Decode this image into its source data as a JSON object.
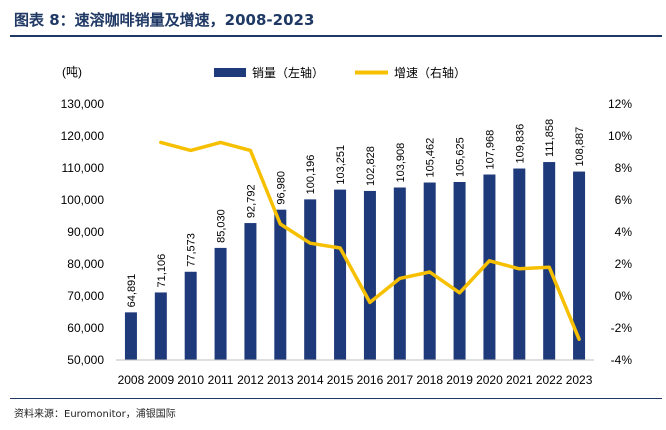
{
  "figure": {
    "title": "图表 8：速溶咖啡销量及增速，2008-2023",
    "source": "资料来源：Euromonitor，浦银国际"
  },
  "colors": {
    "bar": "#1f3a7a",
    "line": "#f6c000",
    "title": "#1f3864"
  },
  "chart_data": {
    "type": "bar+line",
    "unit_label": "(吨)",
    "categories": [
      "2008",
      "2009",
      "2010",
      "2011",
      "2012",
      "2013",
      "2014",
      "2015",
      "2016",
      "2017",
      "2018",
      "2019",
      "2020",
      "2021",
      "2022",
      "2023"
    ],
    "series": [
      {
        "name": "销量（左轴）",
        "type": "bar",
        "axis": "left",
        "values": [
          64891,
          71106,
          77573,
          85030,
          92792,
          96980,
          100196,
          103251,
          102828,
          103908,
          105462,
          105625,
          107968,
          109836,
          111858,
          108887
        ],
        "labels": [
          "64,891",
          "71,106",
          "77,573",
          "85,030",
          "92,792",
          "96,980",
          "100,196",
          "103,251",
          "102,828",
          "103,908",
          "105,462",
          "105,625",
          "107,968",
          "109,836",
          "111,858",
          "108,887"
        ]
      },
      {
        "name": "增速（右轴）",
        "type": "line",
        "axis": "right",
        "values": [
          null,
          9.6,
          9.1,
          9.6,
          9.1,
          4.5,
          3.3,
          3.0,
          -0.4,
          1.1,
          1.5,
          0.2,
          2.2,
          1.7,
          1.8,
          -2.7
        ]
      }
    ],
    "y_left": {
      "min": 50000,
      "max": 130000,
      "step": 10000,
      "ticks": [
        "50,000",
        "60,000",
        "70,000",
        "80,000",
        "90,000",
        "100,000",
        "110,000",
        "120,000",
        "130,000"
      ]
    },
    "y_right": {
      "min": -4,
      "max": 12,
      "step": 2,
      "ticks": [
        "-4%",
        "-2%",
        "0%",
        "2%",
        "4%",
        "6%",
        "8%",
        "10%",
        "12%"
      ]
    },
    "legend_position": "top-center",
    "grid": false
  }
}
